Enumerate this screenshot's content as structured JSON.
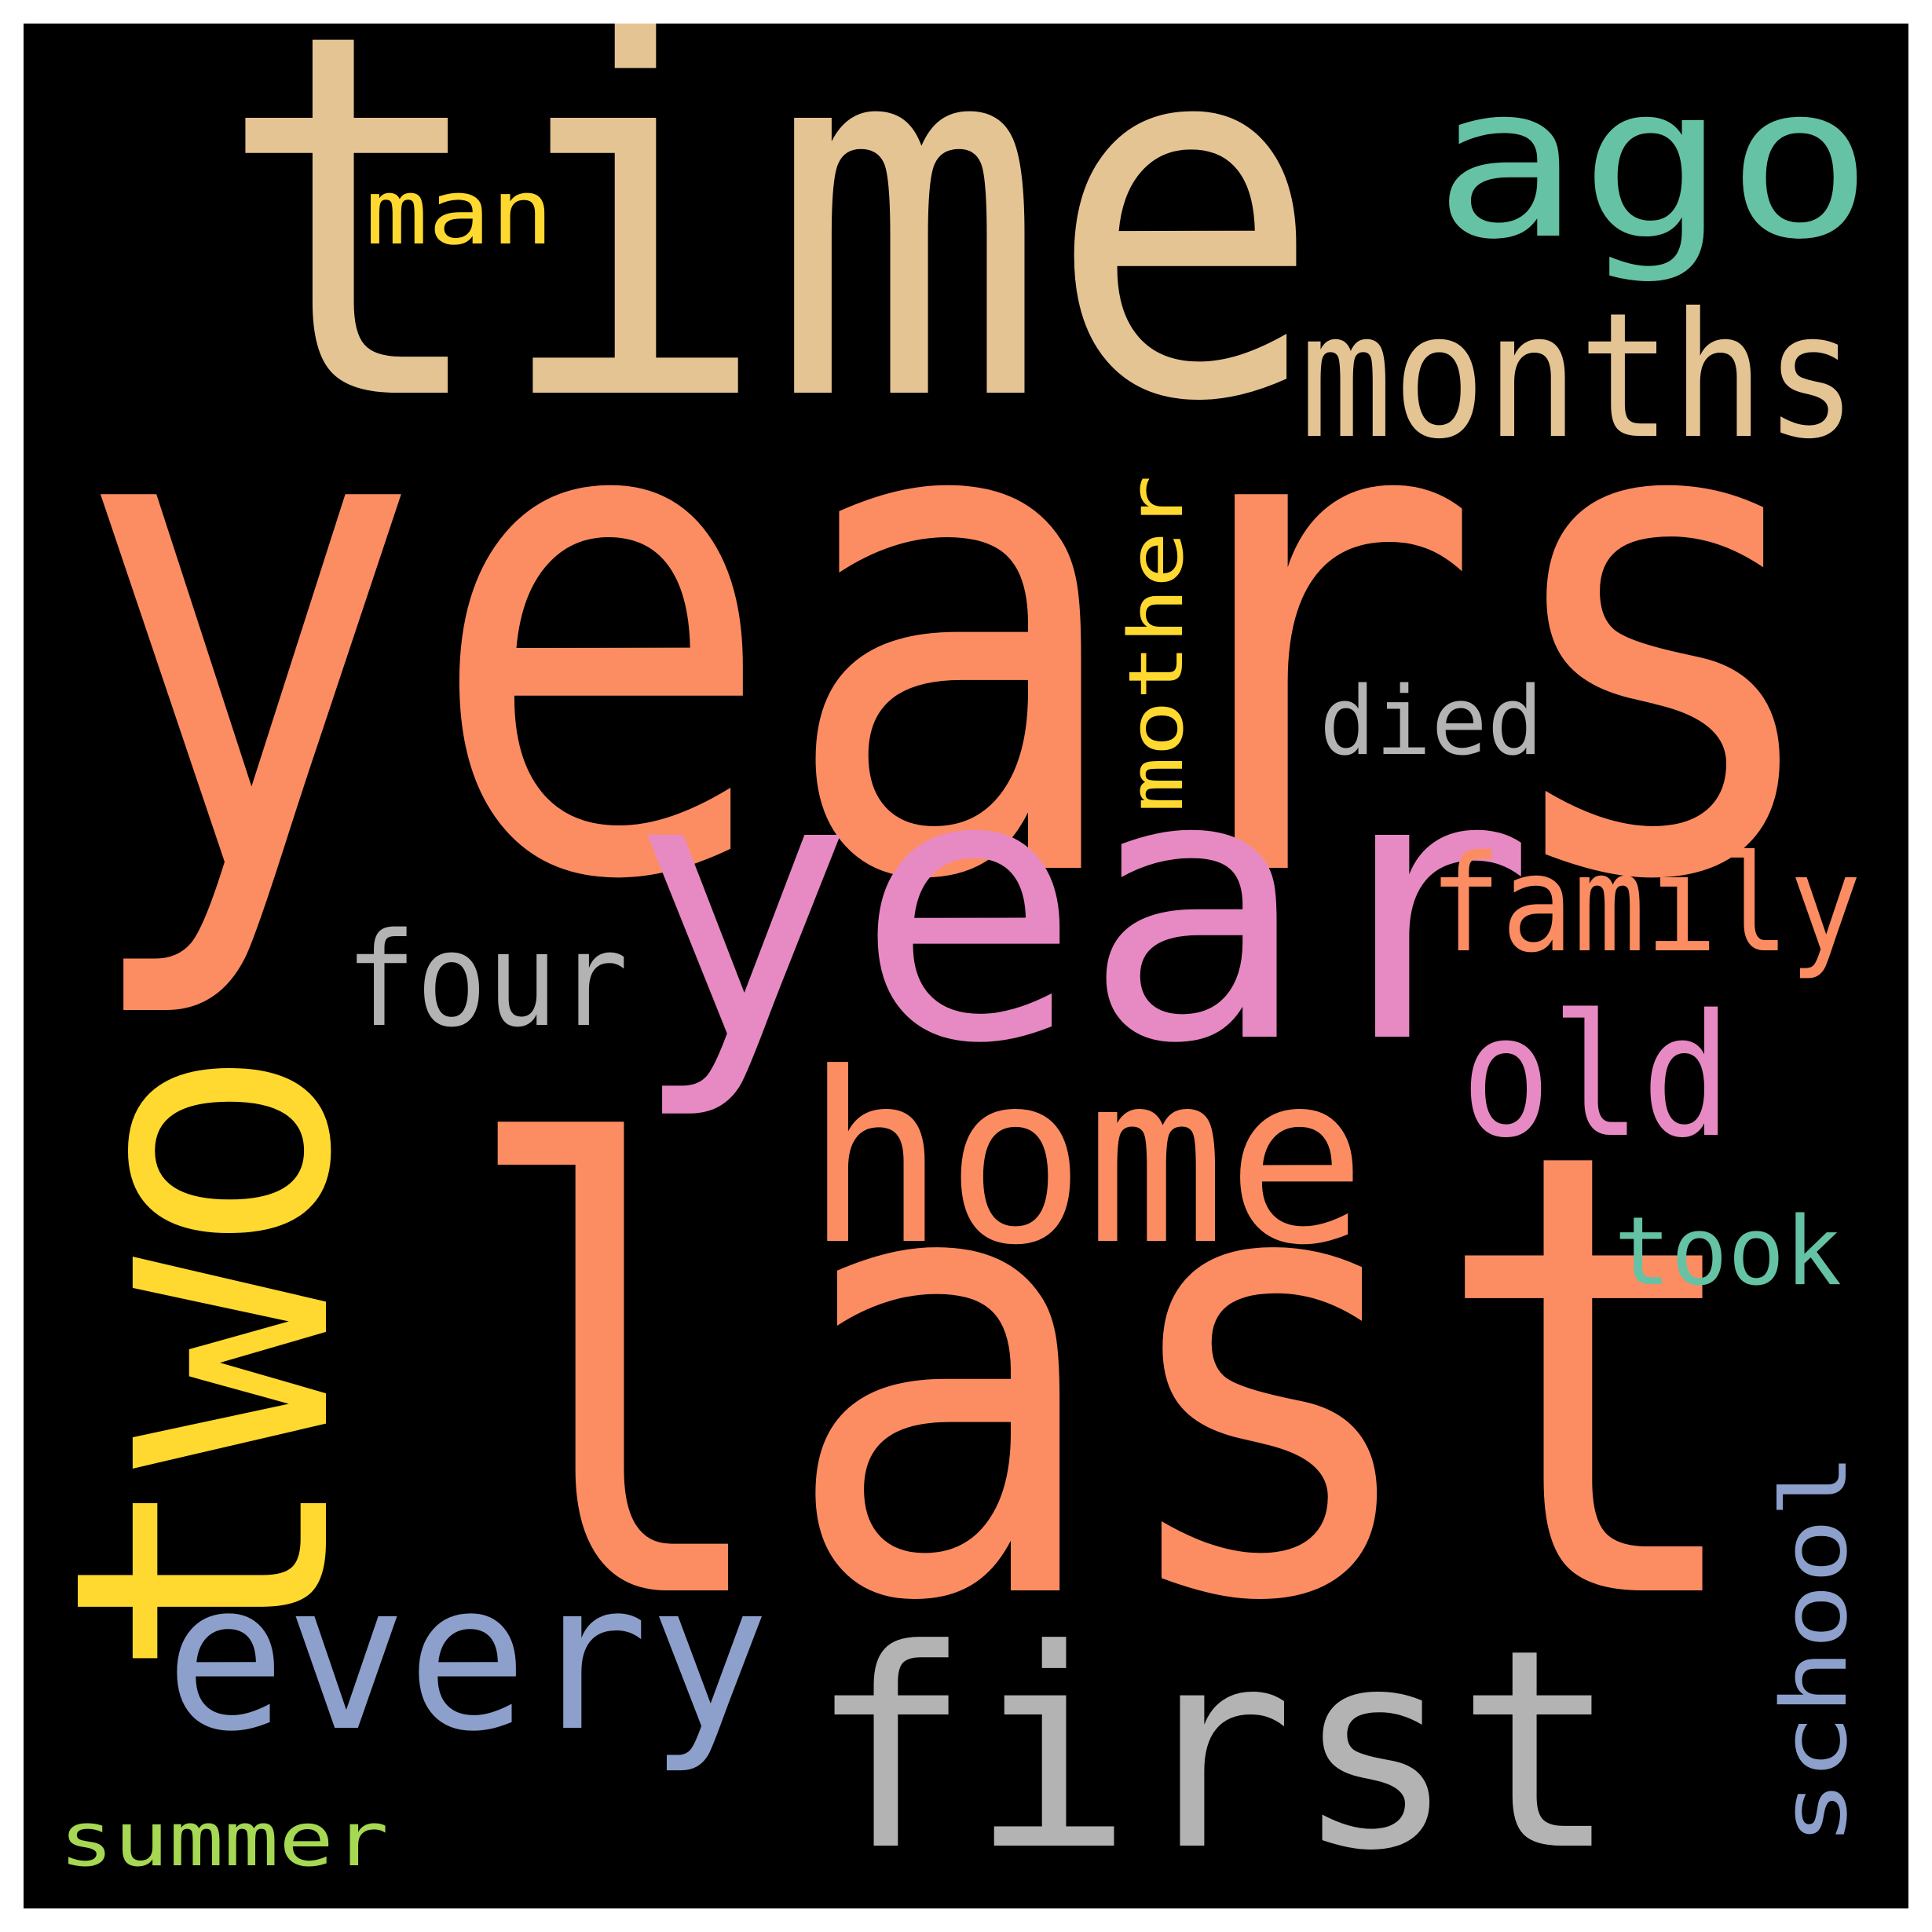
{
  "words": [
    {
      "text": "years",
      "color": "#fc8d62"
    },
    {
      "text": "time",
      "color": "#e5c494"
    },
    {
      "text": "last",
      "color": "#fc8d62"
    },
    {
      "text": "year",
      "color": "#e78ac3"
    },
    {
      "text": "two",
      "color": "#ffd92f"
    },
    {
      "text": "ago",
      "color": "#66c2a5"
    },
    {
      "text": "months",
      "color": "#e5c494"
    },
    {
      "text": "first",
      "color": "#b3b3b3"
    },
    {
      "text": "home",
      "color": "#fc8d62"
    },
    {
      "text": "every",
      "color": "#8da0cb"
    },
    {
      "text": "family",
      "color": "#fc8d62"
    },
    {
      "text": "old",
      "color": "#e78ac3"
    },
    {
      "text": "four",
      "color": "#b3b3b3"
    },
    {
      "text": "mother",
      "color": "#ffd92f"
    },
    {
      "text": "died",
      "color": "#b3b3b3"
    },
    {
      "text": "took",
      "color": "#66c2a5"
    },
    {
      "text": "school",
      "color": "#8da0cb"
    },
    {
      "text": "man",
      "color": "#ffd92f"
    },
    {
      "text": "summer",
      "color": "#a6d854"
    }
  ]
}
